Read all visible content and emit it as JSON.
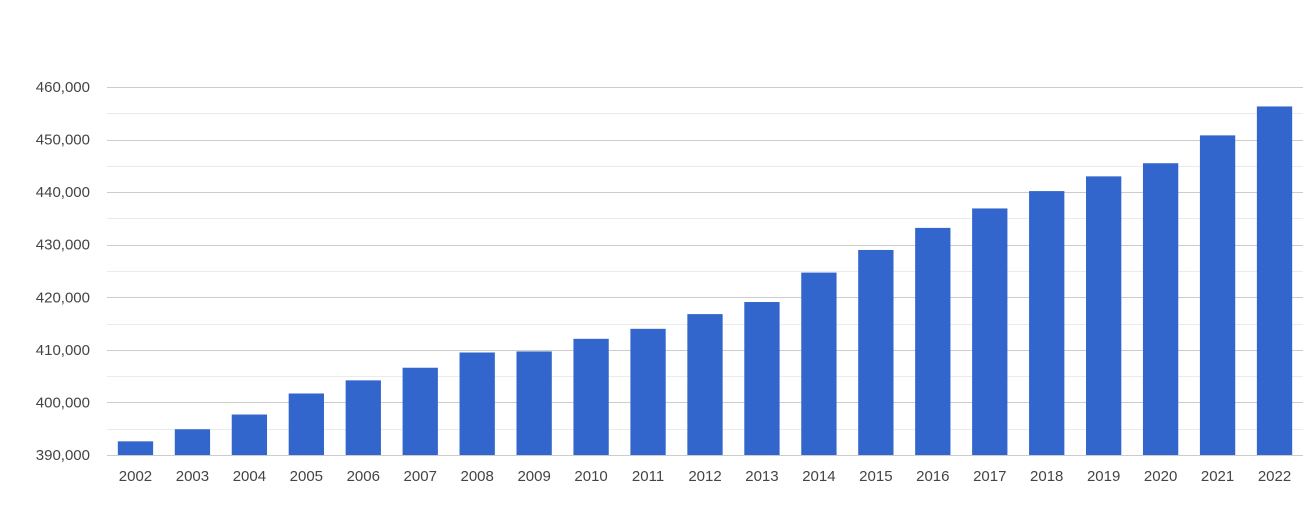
{
  "chart_data": {
    "type": "bar",
    "title": "",
    "xlabel": "",
    "ylabel": "",
    "categories": [
      "2002",
      "2003",
      "2004",
      "2005",
      "2006",
      "2007",
      "2008",
      "2009",
      "2010",
      "2011",
      "2012",
      "2013",
      "2014",
      "2015",
      "2016",
      "2017",
      "2018",
      "2019",
      "2020",
      "2021",
      "2022"
    ],
    "values": [
      392600,
      394900,
      397700,
      401700,
      404200,
      406600,
      409500,
      409700,
      412100,
      414000,
      416800,
      419100,
      424700,
      429000,
      433200,
      436900,
      440200,
      443000,
      445500,
      450800,
      456300
    ],
    "ylim": [
      390000,
      460000
    ],
    "yticks": [
      390000,
      400000,
      410000,
      420000,
      430000,
      440000,
      450000,
      460000
    ],
    "ytick_labels": [
      "390,000",
      "400,000",
      "410,000",
      "420,000",
      "430,000",
      "440,000",
      "450,000",
      "460,000"
    ],
    "grid": true,
    "minor_grid": true,
    "legend": "none",
    "colors": {
      "bar": "#3366cc",
      "major_grid": "#cccccc",
      "minor_grid": "#ebebeb",
      "text": "#444444"
    }
  }
}
